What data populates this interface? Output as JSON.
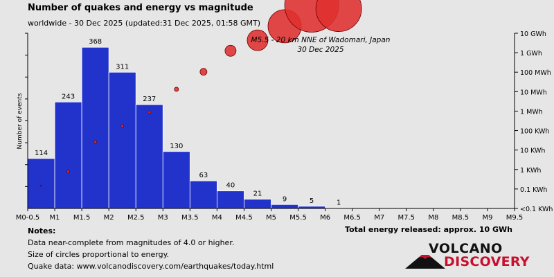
{
  "header": {
    "title": "Number of quakes and energy vs magnitude",
    "subtitle": "worldwide - 30 Dec 2025 (updated:31 Dec 2025, 01:58 GMT)"
  },
  "chart_data": {
    "type": "bar",
    "ylabel": "Number of events",
    "x_tick_labels": [
      "M0-0.5",
      "M1",
      "M1.5",
      "M2",
      "M2.5",
      "M3",
      "M3.5",
      "M4",
      "M4.5",
      "M5",
      "M5.5",
      "M6",
      "M6.5",
      "M7",
      "M7.5",
      "M8",
      "M8.5",
      "M9",
      "M9.5"
    ],
    "energy_axis_labels": [
      "10 GWh",
      "1 GWh",
      "100 MWh",
      "10 MWh",
      "1 MWh",
      "100 KWh",
      "10 KWh",
      "1 KWh",
      "0.1 KWh",
      "<0.1 KWh"
    ],
    "series": [
      {
        "kind": "bars",
        "values": [
          114,
          243,
          368,
          311,
          237,
          130,
          63,
          40,
          21,
          9,
          5,
          1
        ],
        "color": "#2233cc"
      },
      {
        "kind": "energy-circles",
        "values_log10_kwh": [
          1.3,
          2.1,
          3.8,
          4.7,
          5.5,
          6.8,
          7.8,
          9.0,
          9.6,
          10.4,
          11.6,
          11.4
        ],
        "circle_radius": [
          1,
          2,
          2,
          2,
          2,
          3,
          5,
          8,
          15,
          24,
          39,
          33
        ],
        "color": "#e03030"
      }
    ],
    "annotation": {
      "line1": "M5.5 - 20 km NNE of Wadomari, Japan",
      "line2": "30 Dec 2025"
    },
    "grid": false
  },
  "footer": {
    "notes_title": "Notes:",
    "notes": [
      "Data near-complete from magnitudes of 4.0 or higher.",
      "Size of circles proportional to energy.",
      "Quake data: www.volcanodiscovery.com/earthquakes/today.html"
    ],
    "total_energy": "Total energy released: approx. 10 GWh"
  },
  "logo": {
    "line1": "VOLCANO",
    "line2": "DISCOVERY"
  }
}
